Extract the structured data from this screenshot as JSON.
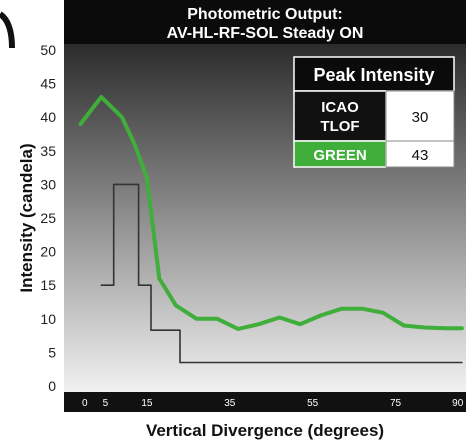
{
  "chart_data": {
    "type": "line",
    "title_lines": [
      "Photometric Output:",
      "AV-HL-RF-SOL Steady ON"
    ],
    "xlabel": "Vertical Divergence (degrees)",
    "ylabel": "Intensity (candela)",
    "xlim": [
      -5,
      92
    ],
    "ylim": [
      0,
      50
    ],
    "x_ticks": [
      "0",
      "5",
      "15",
      "35",
      "55",
      "75",
      "90"
    ],
    "x_tick_values": [
      0,
      5,
      15,
      35,
      55,
      75,
      90
    ],
    "y_ticks": [
      "0",
      "5",
      "10",
      "15",
      "20",
      "25",
      "30",
      "35",
      "40",
      "45",
      "50"
    ],
    "y_tick_values": [
      0,
      5,
      10,
      15,
      20,
      25,
      30,
      35,
      40,
      45,
      50
    ],
    "grid": false,
    "legend": {
      "placement": "top-right",
      "header": "Peak Intensity",
      "rows": [
        {
          "label": "ICAO TLOF",
          "value": "30",
          "bg": "#111111",
          "fg": "#ffffff"
        },
        {
          "label": "GREEN",
          "value": "43",
          "bg": "#3fae3a",
          "fg": "#ffffff"
        }
      ]
    },
    "series": [
      {
        "name": "GREEN",
        "color": "#3fae3a",
        "x": [
          -1,
          4,
          9,
          12,
          15,
          18,
          22,
          27,
          32,
          37,
          42,
          47,
          52,
          57,
          62,
          67,
          72,
          77,
          82,
          87,
          91
        ],
        "y": [
          39,
          43,
          40,
          36,
          31,
          16,
          12,
          10,
          10,
          8.5,
          9.2,
          10.2,
          9.2,
          10.5,
          11.5,
          11.5,
          10.9,
          9,
          8.7,
          8.6,
          8.6
        ]
      },
      {
        "name": "ICAO TLOF",
        "color": "#333333",
        "x": [
          4,
          7,
          7,
          13,
          13,
          16,
          16,
          23,
          23,
          91
        ],
        "y": [
          15,
          15,
          30,
          30,
          15,
          15,
          8.3,
          8.3,
          3.5,
          3.5
        ]
      }
    ]
  },
  "colors": {
    "title_bar": "#0b0b0b",
    "axis_bar": "#111111",
    "plot_top": "#2a2a2a",
    "plot_bottom": "#f2f2f2",
    "green": "#3fae3a"
  }
}
